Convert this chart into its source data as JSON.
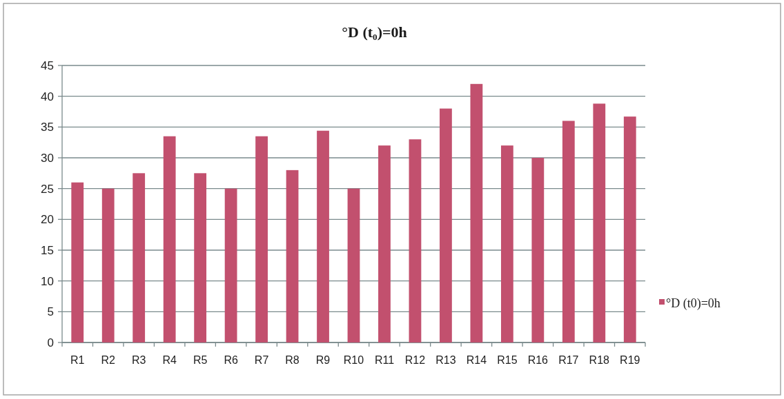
{
  "chart_data": {
    "type": "bar",
    "title": "°D (t₀)=0h",
    "categories": [
      "R1",
      "R2",
      "R3",
      "R4",
      "R5",
      "R6",
      "R7",
      "R8",
      "R9",
      "R10",
      "R11",
      "R12",
      "R13",
      "R14",
      "R15",
      "R16",
      "R17",
      "R18",
      "R19"
    ],
    "series": [
      {
        "name": "°D (t0)=0h",
        "color": "#c2506e",
        "values": [
          26,
          25,
          27.5,
          33.5,
          27.5,
          25,
          33.5,
          28,
          34.4,
          25,
          32,
          33,
          38,
          42,
          32,
          30,
          36,
          38.8,
          36.7
        ]
      }
    ],
    "ylim": [
      0,
      45
    ],
    "yticks": [
      0,
      5,
      10,
      15,
      20,
      25,
      30,
      35,
      40,
      45
    ],
    "grid": "y",
    "legend": "right"
  }
}
